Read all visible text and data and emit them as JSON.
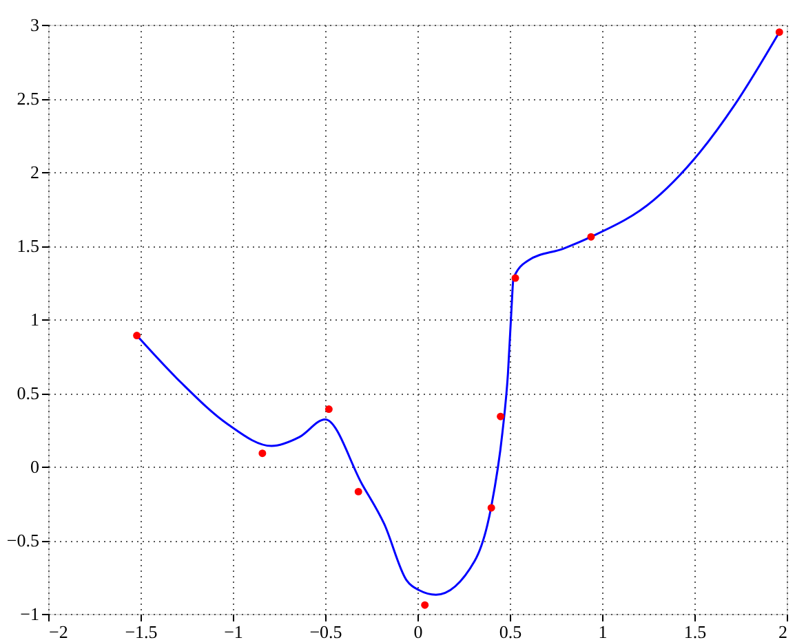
{
  "chart_data": {
    "type": "line",
    "xlim": [
      -2,
      2
    ],
    "ylim": [
      -1,
      3
    ],
    "xticks": [
      -2,
      -1.5,
      -1,
      -0.5,
      0,
      0.5,
      1,
      1.5,
      2
    ],
    "yticks": [
      -1,
      -0.5,
      0,
      0.5,
      1,
      1.5,
      2,
      2.5,
      3
    ],
    "grid": true,
    "line_style": "solid",
    "series": [
      {
        "color": "#0000ff",
        "marker": "none",
        "x": [
          -1.52,
          -1.28,
          -1.03,
          -0.79,
          -0.64,
          -0.5,
          -0.3,
          -0.18,
          -0.06,
          0.01,
          0.1,
          0.31,
          0.4,
          0.46,
          0.49,
          0.51,
          0.52,
          0.6,
          0.79,
          0.94,
          1.28,
          1.5,
          1.72,
          1.96
        ],
        "values": [
          0.89,
          0.57,
          0.29,
          0.14,
          0.2,
          0.32,
          -0.12,
          -0.39,
          -0.77,
          -0.84,
          -0.87,
          -0.64,
          -0.27,
          0.23,
          0.63,
          1.09,
          1.28,
          1.4,
          1.48,
          1.56,
          1.81,
          2.09,
          2.46,
          2.95
        ]
      },
      {
        "type": "scatter",
        "color": "#ff0000",
        "marker": "circle",
        "x": [
          -1.52,
          -0.84,
          -0.48,
          -0.32,
          0.04,
          0.4,
          0.45,
          0.53,
          0.94,
          1.96
        ],
        "values": [
          0.89,
          0.09,
          0.39,
          -0.17,
          -0.94,
          -0.28,
          0.34,
          1.28,
          1.56,
          2.95
        ]
      }
    ]
  }
}
